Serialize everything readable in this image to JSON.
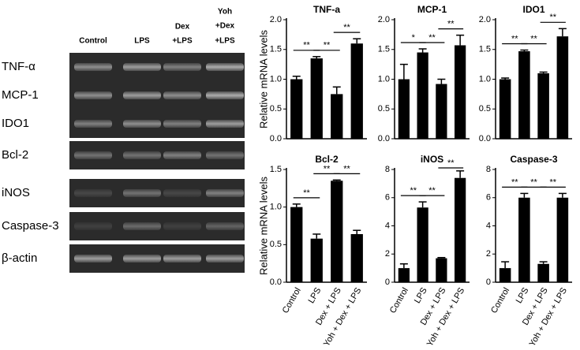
{
  "gel": {
    "lanes": [
      [
        "Control"
      ],
      [
        "LPS"
      ],
      [
        "Dex",
        "+LPS"
      ],
      [
        "Yoh",
        "+Dex",
        "+LPS"
      ]
    ],
    "rows": [
      "TNF-α",
      "MCP-1",
      "IDO1",
      "Bcl-2",
      "iNOS",
      "Caspase-3",
      "β-actin"
    ]
  },
  "chart_data": [
    {
      "type": "bar",
      "title": "TNF-a",
      "y_label": "Relative mRNA levels",
      "categories": [
        null,
        null,
        null,
        null
      ],
      "values": [
        1.0,
        1.35,
        0.75,
        1.6
      ],
      "errors": [
        0.05,
        0.03,
        0.12,
        0.08
      ],
      "color": "#000000",
      "ylim": [
        0,
        2
      ],
      "yticks": [
        {
          "value": 0,
          "label": "0.0"
        },
        0.5,
        {
          "value": 1,
          "label": "1.0"
        },
        1.5,
        {
          "value": 2,
          "label": "2.0"
        }
      ],
      "annotations": [
        "**",
        "**",
        "**"
      ]
    },
    {
      "type": "bar",
      "title": "MCP-1",
      "categories": [
        null,
        null,
        null,
        null
      ],
      "values": [
        1.0,
        1.45,
        0.92,
        1.57
      ],
      "errors": [
        0.25,
        0.06,
        0.08,
        0.17
      ],
      "color": "#000000",
      "ylim": [
        0,
        2
      ],
      "yticks": [
        {
          "value": 0,
          "label": "0.0"
        },
        0.5,
        {
          "value": 1,
          "label": "1.0"
        },
        1.5,
        {
          "value": 2,
          "label": "2.0"
        }
      ],
      "annotations": [
        "*",
        "**",
        "**"
      ]
    },
    {
      "type": "bar",
      "title": "IDO1",
      "categories": [
        null,
        null,
        null,
        null
      ],
      "values": [
        1.0,
        1.47,
        1.1,
        1.72
      ],
      "errors": [
        0.02,
        0.02,
        0.02,
        0.13
      ],
      "color": "#000000",
      "ylim": [
        0,
        2
      ],
      "yticks": [
        {
          "value": 0,
          "label": "0.0"
        },
        0.5,
        {
          "value": 1,
          "label": "1.0"
        },
        1.5,
        {
          "value": 2,
          "label": "2.0"
        }
      ],
      "annotations": [
        "**",
        "**",
        "**"
      ]
    },
    {
      "type": "bar",
      "title": "Bcl-2",
      "y_label": "Relative mRNA levels",
      "categories": [
        "Control",
        "LPS",
        "Dex + LPS",
        "Yoh + Dex + LPS"
      ],
      "values": [
        1.0,
        0.58,
        1.35,
        0.64
      ],
      "errors": [
        0.04,
        0.06,
        0.01,
        0.05
      ],
      "color": "#000000",
      "ylim": [
        0,
        1.5
      ],
      "yticks": [
        {
          "value": 0,
          "label": "0.0"
        },
        0.5,
        {
          "value": 1,
          "label": "1.0"
        },
        1.5
      ],
      "annotations": [
        "**",
        "**",
        "**"
      ]
    },
    {
      "type": "bar",
      "title": "iNOS",
      "categories": [
        "Control",
        "LPS",
        "Dex + LPS",
        "Yoh + Dex + LPS"
      ],
      "values": [
        1.0,
        5.3,
        1.7,
        7.4
      ],
      "errors": [
        0.3,
        0.4,
        0.05,
        0.5
      ],
      "color": "#000000",
      "ylim": [
        0,
        8
      ],
      "yticks": [
        0,
        2,
        4,
        6,
        8
      ],
      "annotations": [
        "**",
        "**",
        "**"
      ]
    },
    {
      "type": "bar",
      "title": "Caspase-3",
      "categories": [
        "Control",
        "LPS",
        "Dex + LPS",
        "Yoh + Dex + LPS"
      ],
      "values": [
        1.0,
        6.0,
        1.3,
        6.0
      ],
      "errors": [
        0.45,
        0.3,
        0.15,
        0.3
      ],
      "color": "#000000",
      "ylim": [
        0,
        8
      ],
      "yticks": [
        0,
        2,
        4,
        6,
        8
      ],
      "annotations": [
        "**",
        "**",
        "**"
      ]
    }
  ]
}
